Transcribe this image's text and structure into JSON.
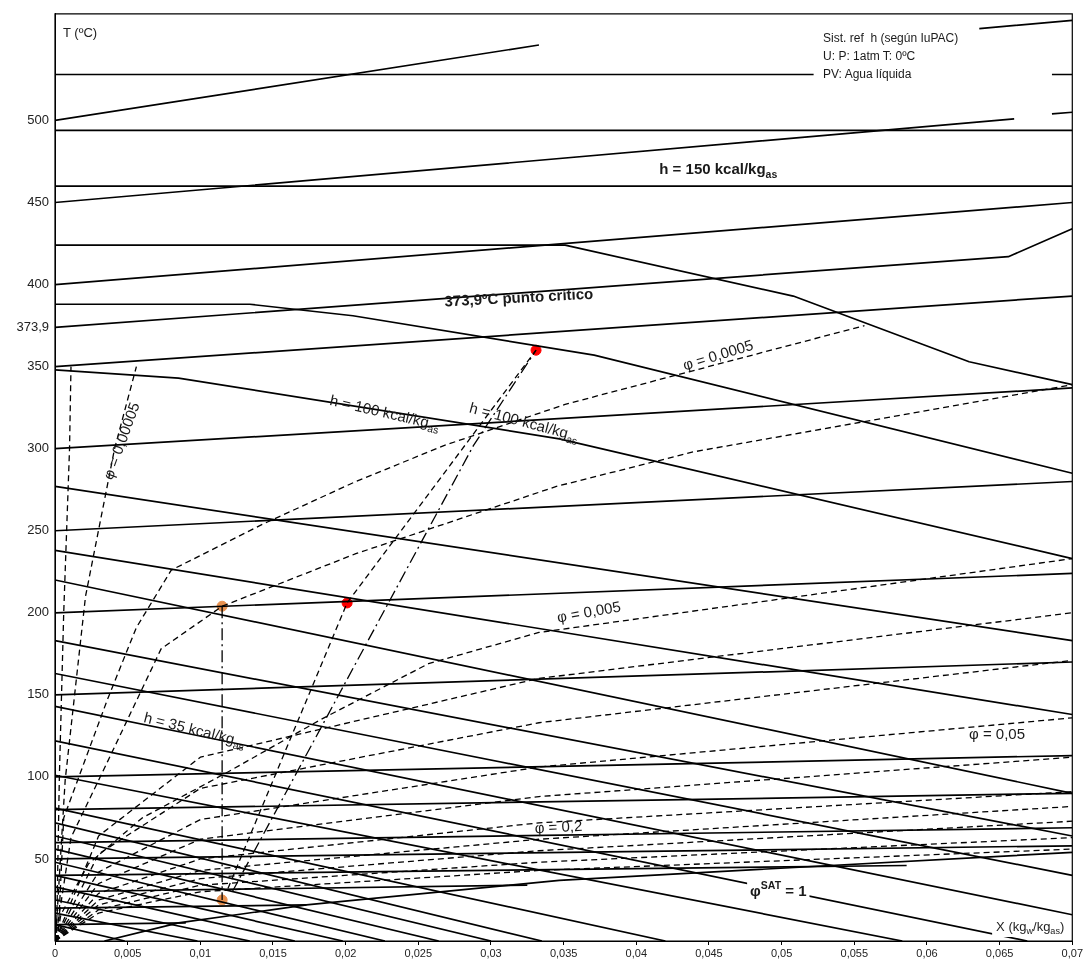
{
  "chart_data": {
    "type": "line",
    "xlabel": "X (kg$_{w}$/kg$_{as}$)",
    "ylabel": "T (ºC)",
    "xlim": [
      0,
      0.07
    ],
    "xticks": [
      0,
      {
        "value": 0.005,
        "label": "0,005"
      },
      {
        "value": 0.01,
        "label": "0,01"
      },
      {
        "value": 0.015,
        "label": "0,015"
      },
      {
        "value": 0.02,
        "label": "0,02"
      },
      {
        "value": 0.025,
        "label": "0,025"
      },
      {
        "value": 0.03,
        "label": "0,03"
      },
      {
        "value": 0.035,
        "label": "0,035"
      },
      {
        "value": 0.04,
        "label": "0,04"
      },
      {
        "value": 0.045,
        "label": "0,045"
      },
      {
        "value": 0.05,
        "label": "0,05"
      },
      {
        "value": 0.055,
        "label": "0,055"
      },
      {
        "value": 0.06,
        "label": "0,06"
      },
      {
        "value": 0.065,
        "label": "0,065"
      },
      {
        "value": 0.07,
        "label": "0,07"
      }
    ],
    "ylim": [
      0,
      565
    ],
    "yticks": [
      50,
      100,
      150,
      200,
      250,
      300,
      350,
      {
        "value": 373.9,
        "label": "373,9"
      },
      400,
      450,
      500
    ],
    "grid": false,
    "legend": false,
    "marker": "none",
    "annotations": [
      "Sist. ref  h (según IuPAC)",
      "U: P: 1atm T: 0ºC",
      "PV: Agua líquida",
      "h = 150 kcal/kg$_{as}$",
      "373,9ºC punto crítico",
      "h = 100 kcal/kg$_{as}$",
      "h = 100 kcal/kg$_{as}$",
      "h = 35 kcal/kg$_{as}$",
      "φ = 0,00005",
      "φ = 0,0005",
      "φ = 0,005",
      "φ = 0,05",
      "φ = 0,2",
      "φ$^{SAT}$ = 1"
    ],
    "series": [
      {
        "color": "#000000",
        "line_style": "solid",
        "x": [
          0,
          0.0333,
          0.0345,
          0.0636,
          0.07
        ],
        "values": [
          500,
          546,
          null,
          556,
          561
        ]
      },
      {
        "color": "#000000",
        "line_style": "solid",
        "x": [
          0,
          0.0522,
          0.06,
          0.0686,
          0.07
        ],
        "values": [
          528,
          528,
          null,
          528,
          528
        ]
      },
      {
        "color": "#000000",
        "line_style": "solid",
        "x": [
          0,
          0.066,
          0.067,
          0.0686,
          0.07
        ],
        "values": [
          450,
          501,
          null,
          504,
          505
        ]
      },
      {
        "color": "#000000",
        "line_style": "solid",
        "x": [
          0,
          0.07
        ],
        "values": [
          494,
          494
        ]
      },
      {
        "color": "#000000",
        "line_style": "solid",
        "x": [
          0,
          0.07
        ],
        "values": [
          460,
          460
        ]
      },
      {
        "color": "#000000",
        "line_style": "solid",
        "x": [
          0,
          0.07
        ],
        "values": [
          400,
          450
        ]
      },
      {
        "color": "#000000",
        "line_style": "solid",
        "x": [
          0,
          0.0351,
          0.0508,
          0.0629,
          0.07
        ],
        "values": [
          424,
          424,
          393,
          353,
          339
        ]
      },
      {
        "color": "#000000",
        "line_style": "solid",
        "x": [
          0,
          0.0656,
          0.07
        ],
        "values": [
          373.9,
          417,
          434
        ]
      },
      {
        "color": "#000000",
        "line_style": "solid",
        "x": [
          0,
          0.07
        ],
        "values": [
          350,
          393
        ]
      },
      {
        "color": "#000000",
        "line_style": "solid",
        "x": [
          0,
          0.0134,
          0.0205,
          0.0371,
          0.07
        ],
        "values": [
          388,
          388,
          381,
          357,
          285
        ]
      },
      {
        "color": "#000000",
        "line_style": "solid",
        "x": [
          0,
          0.07
        ],
        "values": [
          300,
          337
        ]
      },
      {
        "color": "#000000",
        "line_style": "solid",
        "x": [
          0,
          0.0085,
          0.0347,
          0.07
        ],
        "values": [
          348,
          343,
          306,
          233
        ]
      },
      {
        "color": "#000000",
        "line_style": "solid",
        "x": [
          0,
          0.07
        ],
        "values": [
          250,
          280
        ]
      },
      {
        "color": "#000000",
        "line_style": "solid",
        "x": [
          0,
          0.07
        ],
        "values": [
          277,
          183
        ]
      },
      {
        "color": "#000000",
        "line_style": "solid",
        "x": [
          0,
          0.07
        ],
        "values": [
          200,
          224
        ]
      },
      {
        "color": "#000000",
        "line_style": "solid",
        "x": [
          0,
          0.07
        ],
        "values": [
          238,
          138
        ]
      },
      {
        "color": "#000000",
        "line_style": "solid",
        "x": [
          0,
          0.07
        ],
        "values": [
          220,
          90
        ]
      },
      {
        "color": "#000000",
        "line_style": "solid",
        "x": [
          0,
          0.07
        ],
        "values": [
          150,
          170
        ]
      },
      {
        "color": "#000000",
        "line_style": "solid",
        "x": [
          0,
          0.07
        ],
        "values": [
          183,
          64
        ]
      },
      {
        "color": "#000000",
        "line_style": "solid",
        "x": [
          0,
          0.07
        ],
        "values": [
          163,
          40
        ]
      },
      {
        "color": "#000000",
        "line_style": "solid",
        "x": [
          0,
          0.07
        ],
        "values": [
          143,
          16
        ]
      },
      {
        "color": "#000000",
        "line_style": "solid",
        "x": [
          0,
          0.0669
        ],
        "values": [
          122,
          0
        ]
      },
      {
        "color": "#000000",
        "line_style": "solid",
        "x": [
          0,
          0.0583
        ],
        "values": [
          101,
          0
        ]
      },
      {
        "color": "#000000",
        "line_style": "solid",
        "x": [
          0,
          0.07
        ],
        "values": [
          100,
          113
        ]
      },
      {
        "color": "#000000",
        "line_style": "solid",
        "x": [
          0,
          0.07
        ],
        "values": [
          80,
          90
        ]
      },
      {
        "color": "#000000",
        "line_style": "solid",
        "x": [
          0,
          0.07
        ],
        "values": [
          60,
          69
        ]
      },
      {
        "color": "#000000",
        "line_style": "solid",
        "x": [
          0,
          0.07
        ],
        "values": [
          50,
          58
        ]
      },
      {
        "color": "#000000",
        "line_style": "solid",
        "x": [
          0,
          0.0586
        ],
        "values": [
          40,
          46
        ]
      },
      {
        "color": "#000000",
        "line_style": "solid",
        "x": [
          0,
          0.0325
        ],
        "values": [
          30,
          34
        ]
      },
      {
        "color": "#000000",
        "line_style": "solid",
        "x": [
          0,
          0.0173
        ],
        "values": [
          20,
          22
        ]
      },
      {
        "color": "#000000",
        "line_style": "solid",
        "x": [
          0,
          0.009
        ],
        "values": [
          10,
          11
        ]
      },
      {
        "color": "#000000",
        "line_style": "solid",
        "x": [
          0.0034,
          0.0085,
          0.0173,
          0.0347,
          0.07
        ],
        "values": [
          0,
          11,
          22,
          37,
          54
        ]
      },
      {
        "color": "#000000",
        "line_style": "solid",
        "x": [
          0,
          0.042
        ],
        "values": [
          81,
          0
        ]
      },
      {
        "color": "#000000",
        "line_style": "solid",
        "x": [
          0,
          0.0335
        ],
        "values": [
          72,
          0
        ]
      },
      {
        "color": "#000000",
        "line_style": "solid",
        "x": [
          0,
          0.03
        ],
        "values": [
          64,
          0
        ]
      },
      {
        "color": "#000000",
        "line_style": "solid",
        "x": [
          0,
          0.0264
        ],
        "values": [
          56,
          0
        ]
      },
      {
        "color": "#000000",
        "line_style": "solid",
        "x": [
          0,
          0.0227
        ],
        "values": [
          48,
          0
        ]
      },
      {
        "color": "#000000",
        "line_style": "solid",
        "x": [
          0,
          0.0198
        ],
        "values": [
          40,
          0
        ]
      },
      {
        "color": "#000000",
        "line_style": "solid",
        "x": [
          0,
          0.0165
        ],
        "values": [
          33,
          0
        ]
      },
      {
        "color": "#000000",
        "line_style": "solid",
        "x": [
          0,
          0.0134
        ],
        "values": [
          25,
          0
        ]
      },
      {
        "color": "#000000",
        "line_style": "solid",
        "x": [
          0,
          0.0098
        ],
        "values": [
          17,
          0
        ]
      },
      {
        "color": "#000000",
        "line_style": "solid",
        "x": [
          0,
          0.0048
        ],
        "values": [
          10,
          0
        ]
      },
      {
        "color": "#000000",
        "line_style": "dashed",
        "x": [
          0.0001,
          0.0003,
          0.0006,
          0.001,
          0.0011
        ],
        "values": [
          0,
          100,
          200,
          300,
          350
        ]
      },
      {
        "color": "#000000",
        "line_style": "dashed",
        "x": [
          0.0001,
          0.0007,
          0.0021,
          0.0041,
          0.0056
        ],
        "values": [
          10,
          98,
          210,
          300,
          350
        ]
      },
      {
        "color": "#000000",
        "line_style": "dashed",
        "x": [
          0.0002,
          0.0006,
          0.0036,
          0.0056,
          0.008,
          0.0143,
          0.0207,
          0.0268,
          0.0351,
          0.0557
        ],
        "values": [
          0,
          75,
          147,
          191,
          226,
          254,
          280,
          302,
          327,
          375
        ]
      },
      {
        "color": "#000000",
        "line_style": "dashed",
        "x": [
          0.0001,
          0.0011,
          0.0036,
          0.0073,
          0.0115,
          0.0207,
          0.0345,
          0.0439,
          0.07
        ],
        "values": [
          5,
          63,
          109,
          178,
          204,
          236,
          277,
          298,
          339
        ]
      },
      {
        "color": "#000000",
        "line_style": "dashed",
        "x": [
          0.0001,
          0.0004,
          0.0023,
          0.006,
          0.0119,
          0.0183,
          0.0257,
          0.0333,
          0.07
        ],
        "values": [
          0,
          16,
          47,
          75,
          103,
          135,
          169,
          188,
          233
        ]
      },
      {
        "color": "#000000",
        "line_style": "dashed",
        "x": [
          0,
          0.003,
          0.01,
          0.0333,
          0.07
        ],
        "values": [
          0,
          64,
          112,
          160,
          200
        ]
      },
      {
        "color": "#000000",
        "line_style": "dashed",
        "x": [
          0,
          0.003,
          0.01,
          0.0333,
          0.07
        ],
        "values": [
          0,
          53,
          93,
          133,
          171
        ]
      },
      {
        "color": "#000000",
        "line_style": "dashed",
        "x": [
          0,
          0.003,
          0.01,
          0.0333,
          0.07
        ],
        "values": [
          0,
          42,
          74,
          106,
          136
        ]
      },
      {
        "color": "#000000",
        "line_style": "dashed",
        "x": [
          0,
          0.003,
          0.01,
          0.0333,
          0.07
        ],
        "values": [
          0,
          35,
          62,
          88,
          112
        ]
      },
      {
        "color": "#000000",
        "line_style": "dashed",
        "x": [
          0,
          0.003,
          0.01,
          0.0333,
          0.07
        ],
        "values": [
          0,
          29,
          50,
          72,
          91
        ]
      },
      {
        "color": "#000000",
        "line_style": "dashed",
        "x": [
          0,
          0.003,
          0.01,
          0.0333,
          0.07
        ],
        "values": [
          0,
          25,
          43,
          62,
          82
        ]
      },
      {
        "color": "#000000",
        "line_style": "dashed",
        "x": [
          0,
          0.003,
          0.01,
          0.0333,
          0.07
        ],
        "values": [
          0,
          22,
          38,
          55,
          73
        ]
      },
      {
        "color": "#000000",
        "line_style": "dashed",
        "x": [
          0,
          0.003,
          0.01,
          0.0333,
          0.07
        ],
        "values": [
          0,
          19,
          34,
          48,
          63
        ]
      },
      {
        "color": "#000000",
        "line_style": "dashed",
        "x": [
          0,
          0.003,
          0.01,
          0.0333,
          0.07
        ],
        "values": [
          0,
          17,
          30,
          43,
          56
        ]
      },
      {
        "color": "#000000",
        "line_style": "dashed",
        "x": [
          0.0119,
          0.0201,
          0.0331
        ],
        "values": [
          32,
          206,
          360
        ]
      },
      {
        "color": "#000000",
        "line_style": "dashdot",
        "x": [
          0.0122,
          0.0288,
          0.0331
        ],
        "values": [
          30,
          302,
          360
        ]
      },
      {
        "color": "#000000",
        "line_style": "dashdot",
        "x": [
          0.0115,
          0.0115
        ],
        "values": [
          204,
          25
        ]
      },
      {
        "type": "scatter",
        "marker": "circle",
        "x": [
          0.0331,
          0.0201,
          0.0115,
          0.0115
        ],
        "values": [
          360,
          206,
          204,
          25
        ],
        "colors": [
          "#ff0000",
          "#ff0000",
          "#e8914f",
          "#e8914f"
        ]
      }
    ]
  }
}
